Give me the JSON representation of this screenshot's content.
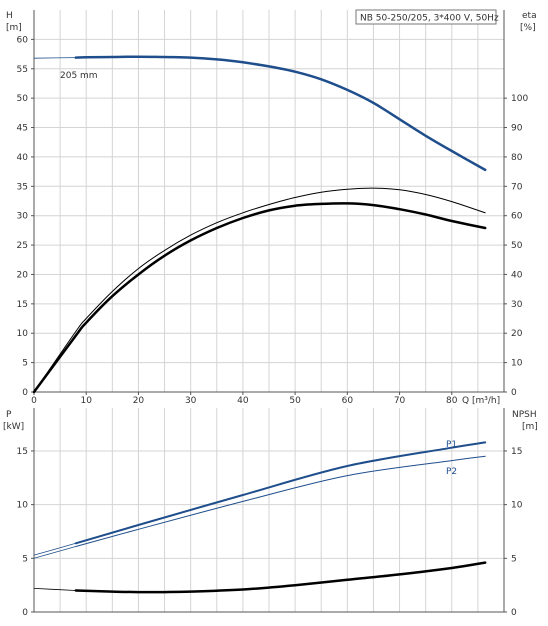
{
  "chart_data": [
    {
      "type": "line",
      "title": "NB 50-250/205, 3*400 V, 50Hz",
      "xlabel": "Q [m³/h]",
      "ylabel_left": [
        "H",
        "[m]"
      ],
      "ylabel_right": [
        "eta",
        "[%]"
      ],
      "xlim": [
        0,
        90
      ],
      "ylim_left": [
        0,
        65
      ],
      "ylim_right": [
        0,
        130
      ],
      "x_ticks": [
        0,
        10,
        20,
        30,
        40,
        50,
        60,
        70,
        80
      ],
      "y_ticks_left": [
        0,
        5,
        10,
        15,
        20,
        25,
        30,
        35,
        40,
        45,
        50,
        55,
        60
      ],
      "y_ticks_right": [
        0,
        10,
        20,
        30,
        40,
        50,
        60,
        70,
        80,
        90,
        100
      ],
      "grid": true,
      "annotation": "205 mm",
      "series": [
        {
          "axis": "left",
          "color": "#1f4e8c",
          "width": 2.5,
          "dash_segment": [
            0,
            8
          ],
          "x": [
            0,
            8,
            10,
            15,
            20,
            25,
            30,
            35,
            40,
            45,
            50,
            55,
            60,
            65,
            70,
            75,
            80,
            86.4
          ],
          "y": [
            56.8,
            56.9,
            56.95,
            57.0,
            57.05,
            57.0,
            56.9,
            56.6,
            56.1,
            55.4,
            54.5,
            53.2,
            51.4,
            49.2,
            46.4,
            43.6,
            41.0,
            37.8
          ]
        },
        {
          "axis": "right",
          "color": "#000000",
          "width": 1,
          "x": [
            0,
            8,
            10,
            15,
            20,
            25,
            30,
            35,
            40,
            45,
            50,
            55,
            60,
            65,
            70,
            75,
            80,
            86.4
          ],
          "y": [
            0,
            20.6,
            25,
            34.2,
            42,
            48.2,
            53.4,
            57.6,
            61.0,
            63.8,
            66.2,
            68.0,
            69.0,
            69.4,
            68.8,
            67.2,
            64.8,
            61.0
          ]
        },
        {
          "axis": "right",
          "color": "#000000",
          "width": 2.5,
          "x": [
            0,
            8,
            10,
            15,
            20,
            25,
            30,
            35,
            40,
            45,
            50,
            55,
            60,
            65,
            70,
            75,
            80,
            86.4
          ],
          "y": [
            0,
            19.2,
            23.6,
            32.6,
            40.0,
            46.4,
            51.6,
            55.8,
            59.2,
            61.8,
            63.4,
            64.0,
            64.2,
            63.6,
            62.2,
            60.4,
            58.2,
            55.8
          ]
        }
      ]
    },
    {
      "type": "line",
      "ylabel_left": [
        "P",
        "[kW]"
      ],
      "ylabel_right": [
        "NPSH",
        "[m]"
      ],
      "xlim": [
        0,
        90
      ],
      "ylim": [
        0,
        19
      ],
      "y_ticks": [
        0,
        5,
        10,
        15
      ],
      "grid": true,
      "series": [
        {
          "name": "P1",
          "color": "#1f4e8c",
          "width": 2,
          "dash_segment": [
            0,
            8
          ],
          "x": [
            0,
            8,
            20,
            40,
            60,
            80,
            86.4
          ],
          "y": [
            5.3,
            6.4,
            8.1,
            10.9,
            13.6,
            15.3,
            15.8
          ]
        },
        {
          "name": "P2",
          "color": "#1f4e8c",
          "width": 1,
          "dash_segment": [
            0,
            8
          ],
          "x": [
            0,
            8,
            20,
            40,
            60,
            80,
            86.4
          ],
          "y": [
            5.0,
            6.1,
            7.7,
            10.3,
            12.7,
            14.1,
            14.5
          ]
        },
        {
          "axis": "right",
          "color": "#000000",
          "width": 2.5,
          "dash_segment": [
            0,
            8
          ],
          "x": [
            0,
            8,
            15,
            20,
            25,
            30,
            40,
            50,
            60,
            70,
            80,
            86.4
          ],
          "y": [
            2.2,
            2.0,
            1.9,
            1.85,
            1.85,
            1.9,
            2.1,
            2.5,
            3.0,
            3.5,
            4.1,
            4.6
          ]
        }
      ]
    }
  ]
}
